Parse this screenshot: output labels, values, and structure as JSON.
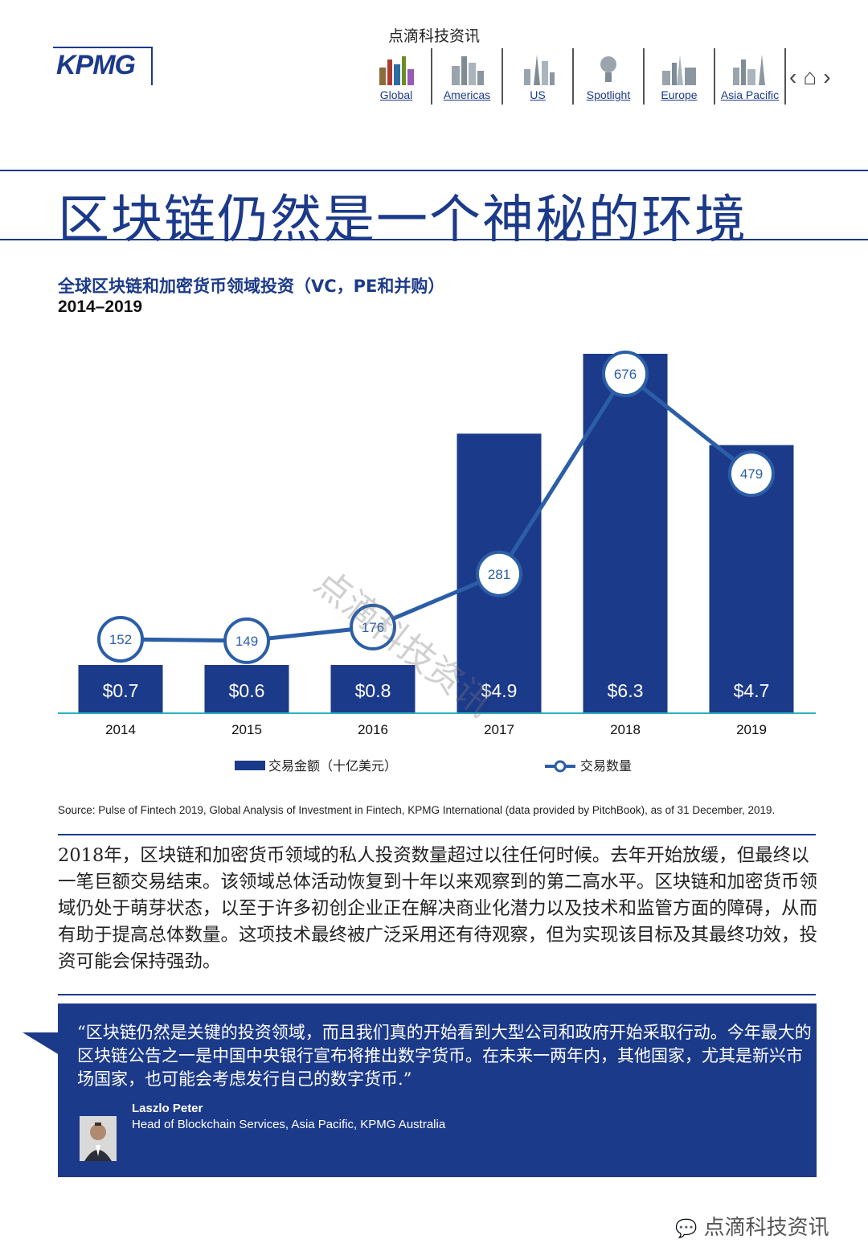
{
  "top_watermark": "点滴科技资讯",
  "logo": "KPMG",
  "nav": {
    "items": [
      {
        "label": "Global",
        "icon": "skyline-global-icon"
      },
      {
        "label": "Americas",
        "icon": "skyline-americas-icon"
      },
      {
        "label": "US",
        "icon": "skyline-us-icon"
      },
      {
        "label": "Spotlight",
        "icon": "spotlight-icon"
      },
      {
        "label": "Europe",
        "icon": "skyline-europe-icon"
      },
      {
        "label": "Asia Pacific",
        "icon": "skyline-asia-icon"
      }
    ],
    "prev": "‹",
    "home": "⌂",
    "next": "›"
  },
  "headline": "区块链仍然是一个神秘的环境",
  "chart_title": "全球区块链和加密货币领域投资（VC，PE和并购）",
  "chart_subtitle": "2014–2019",
  "chart_data": {
    "type": "bar",
    "categories": [
      "2014",
      "2015",
      "2016",
      "2017",
      "2018",
      "2019"
    ],
    "series": [
      {
        "name": "交易金额（十亿美元）",
        "type": "bar",
        "values": [
          0.7,
          0.6,
          0.8,
          4.9,
          6.3,
          4.7
        ],
        "labels": [
          "$0.7",
          "$0.6",
          "$0.8",
          "$4.9",
          "$6.3",
          "$4.7"
        ]
      },
      {
        "name": "交易数量",
        "type": "line",
        "values": [
          152,
          149,
          176,
          281,
          676,
          479
        ]
      }
    ],
    "legend_position": "bottom",
    "colors": {
      "bar": "#1c3a8a",
      "line": "#2b5ea7",
      "baseline": "#2ab0c0"
    }
  },
  "watermark_diagonal": "点滴科技资讯",
  "source": "Source: Pulse of Fintech 2019, Global Analysis of Investment in Fintech, KPMG International (data provided by PitchBook), as of 31 December, 2019.",
  "body_text": "2018年，区块链和加密货币领域的私人投资数量超过以往任何时候。去年开始放缓，但最终以一笔巨额交易结束。该领域总体活动恢复到十年以来观察到的第二高水平。区块链和加密货币领域仍处于萌芽状态，以至于许多初创企业正在解决商业化潜力以及技术和监管方面的障碍，从而有助于提高总体数量。这项技术最终被广泛采用还有待观察，但为实现该目标及其最终功效，投资可能会保持强劲。",
  "quote": {
    "text": "“区块链仍然是关键的投资领域，而且我们真的开始看到大型公司和政府开始采取行动。今年最大的区块链公告之一是中国中央银行宣布将推出数字货币。在未来一两年内，其他国家，尤其是新兴市场国家，也可能会考虑发行自己的数字货币.”",
    "name": "Laszlo Peter",
    "role": "Head of Blockchain Services, Asia Pacific, KPMG Australia"
  },
  "footer_watermark": "点滴科技资讯"
}
